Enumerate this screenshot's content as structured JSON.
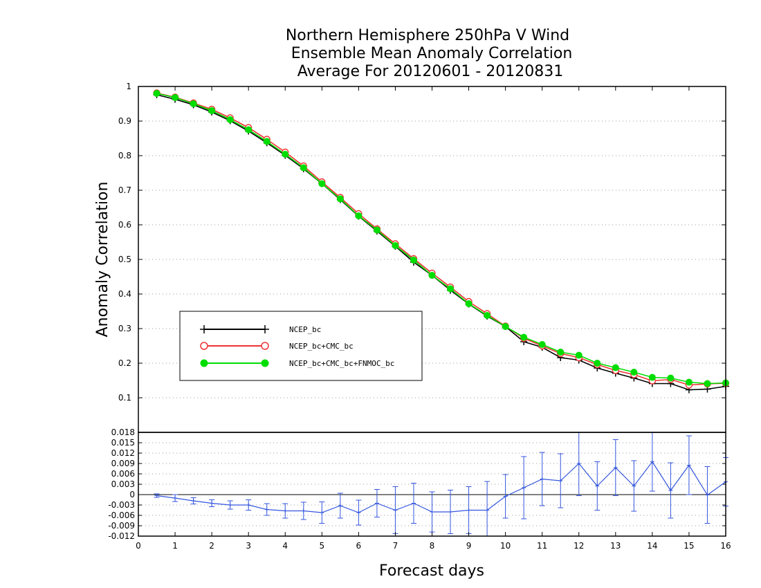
{
  "chart_data": [
    {
      "type": "line",
      "title": [
        "Northern Hemisphere 250hPa V Wind",
        "Ensemble Mean Anomaly Correlation",
        "Average For 20120601 - 20120831"
      ],
      "ylabel": "Anomaly Correlation",
      "ylim": [
        0,
        1
      ],
      "yticks": [
        "1",
        "0.9",
        "0.8",
        "0.7",
        "0.6",
        "0.5",
        "0.4",
        "0.3",
        "0.2",
        "0.1"
      ],
      "grid": true,
      "legend_position": "center-left",
      "x": [
        0.5,
        1,
        1.5,
        2,
        2.5,
        3,
        3.5,
        4,
        4.5,
        5,
        5.5,
        6,
        6.5,
        7,
        7.5,
        8,
        8.5,
        9,
        9.5,
        10,
        10.5,
        11,
        11.5,
        12,
        12.5,
        13,
        13.5,
        14,
        14.5,
        15,
        15.5,
        16
      ],
      "series": [
        {
          "name": "NCEP_bc",
          "color": "#000000",
          "marker": "plus",
          "values": [
            0.976,
            0.963,
            0.947,
            0.926,
            0.901,
            0.871,
            0.837,
            0.801,
            0.762,
            0.719,
            0.673,
            0.625,
            0.582,
            0.538,
            0.492,
            0.454,
            0.411,
            0.371,
            0.336,
            0.306,
            0.262,
            0.246,
            0.216,
            0.209,
            0.186,
            0.171,
            0.157,
            0.141,
            0.141,
            0.123,
            0.125,
            0.133
          ]
        },
        {
          "name": "NCEP_bc+CMC_bc",
          "color": "#ee3333",
          "marker": "open-circle",
          "values": [
            0.981,
            0.969,
            0.952,
            0.934,
            0.909,
            0.881,
            0.847,
            0.81,
            0.77,
            0.724,
            0.679,
            0.632,
            0.588,
            0.545,
            0.502,
            0.46,
            0.42,
            0.378,
            0.343,
            0.307,
            0.272,
            0.25,
            0.228,
            0.216,
            0.196,
            0.179,
            0.167,
            0.149,
            0.153,
            0.137,
            0.14,
            0.142
          ]
        },
        {
          "name": "NCEP_bc+CMC_bc+FNMOC_bc",
          "color": "#00dd00",
          "marker": "filled-circle",
          "values": [
            0.98,
            0.968,
            0.95,
            0.93,
            0.904,
            0.875,
            0.841,
            0.804,
            0.765,
            0.719,
            0.675,
            0.626,
            0.585,
            0.54,
            0.498,
            0.454,
            0.415,
            0.372,
            0.338,
            0.306,
            0.275,
            0.254,
            0.232,
            0.223,
            0.2,
            0.187,
            0.174,
            0.159,
            0.157,
            0.145,
            0.141,
            0.143
          ]
        }
      ]
    },
    {
      "type": "line",
      "xlabel": "Forecast days",
      "xlim": [
        0,
        16
      ],
      "xticks": [
        "0",
        "1",
        "2",
        "3",
        "4",
        "5",
        "6",
        "7",
        "8",
        "9",
        "10",
        "11",
        "12",
        "13",
        "14",
        "15",
        "16"
      ],
      "ylim": [
        -0.012,
        0.018
      ],
      "yticks": [
        "0.018",
        "0.015",
        "0.012",
        "0.009",
        "0.006",
        "0.003",
        "0",
        "-0.003",
        "-0.006",
        "-0.009",
        "-0.012"
      ],
      "grid": true,
      "x": [
        0.5,
        1,
        1.5,
        2,
        2.5,
        3,
        3.5,
        4,
        4.5,
        5,
        5.5,
        6,
        6.5,
        7,
        7.5,
        8,
        8.5,
        9,
        9.5,
        10,
        10.5,
        11,
        11.5,
        12,
        12.5,
        13,
        13.5,
        14,
        14.5,
        15,
        15.5,
        16
      ],
      "series": [
        {
          "color": "#3355dd",
          "values": [
            -0.0003,
            -0.001,
            -0.0018,
            -0.0025,
            -0.003,
            -0.003,
            -0.0043,
            -0.0047,
            -0.0047,
            -0.0052,
            -0.0032,
            -0.0052,
            -0.0025,
            -0.0045,
            -0.0025,
            -0.005,
            -0.005,
            -0.0045,
            -0.0045,
            -0.0005,
            0.002,
            0.0045,
            0.004,
            0.009,
            0.0025,
            0.0078,
            0.0025,
            0.0095,
            0.0012,
            0.0085,
            -0.0001,
            0.0037
          ],
          "error_low": [
            -0.0008,
            -0.002,
            -0.0027,
            -0.0035,
            -0.0042,
            -0.0045,
            -0.006,
            -0.0068,
            -0.0072,
            -0.0083,
            -0.0068,
            -0.0088,
            -0.0065,
            -0.0113,
            -0.0083,
            -0.0108,
            -0.0113,
            -0.0113,
            -0.0128,
            -0.0068,
            -0.007,
            -0.0032,
            -0.0038,
            -0.0003,
            -0.0045,
            -0.0003,
            -0.0048,
            0.001,
            -0.0068,
            0.0,
            -0.0083,
            -0.0033
          ],
          "error_high": [
            0.0002,
            0.0,
            -0.0009,
            -0.0015,
            -0.0018,
            -0.0015,
            -0.0026,
            -0.0026,
            -0.0022,
            -0.0021,
            0.0004,
            -0.0016,
            0.0015,
            0.0023,
            0.0033,
            0.0008,
            0.0013,
            0.0023,
            0.0038,
            0.0058,
            0.011,
            0.0122,
            0.0118,
            0.0183,
            0.0095,
            0.0159,
            0.0098,
            0.018,
            0.0092,
            0.017,
            0.0081,
            0.0107
          ]
        }
      ]
    }
  ]
}
